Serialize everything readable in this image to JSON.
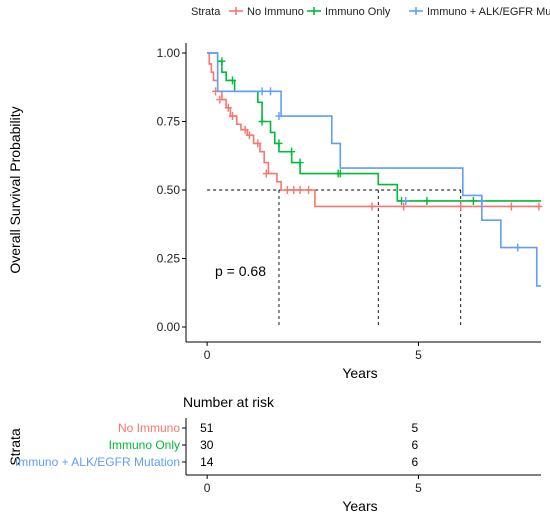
{
  "chart_data": [
    {
      "type": "line",
      "subtype": "kaplan-meier",
      "title": "",
      "xlabel": "Years",
      "ylabel": "Overall Survival Probability",
      "xlim": [
        -0.5,
        7.9
      ],
      "ylim": [
        0,
        1.0
      ],
      "x_ticks": [
        0,
        5
      ],
      "x_tick_labels": [
        "0",
        "5"
      ],
      "y_ticks": [
        0,
        0.25,
        0.5,
        0.75,
        1.0
      ],
      "y_tick_labels": [
        "0.00",
        "0.25",
        "0.50",
        "0.75",
        "1.00"
      ],
      "grid": false,
      "legend": {
        "placement": "top",
        "title": "Strata",
        "entries": [
          "No Immuno",
          "Immuno Only",
          "Immuno + ALK/EGFR Mutation"
        ]
      },
      "annotation": "p = 0.68",
      "median_line_y": 0.5,
      "median_x": [
        1.7,
        4.05,
        6.0
      ],
      "series": [
        {
          "name": "No Immuno",
          "color": "#f8766d",
          "steps": [
            [
              0,
              1.0
            ],
            [
              0.05,
              0.96
            ],
            [
              0.1,
              0.93
            ],
            [
              0.15,
              0.9
            ],
            [
              0.25,
              0.86
            ],
            [
              0.35,
              0.83
            ],
            [
              0.45,
              0.8
            ],
            [
              0.55,
              0.77
            ],
            [
              0.7,
              0.74
            ],
            [
              0.8,
              0.72
            ],
            [
              0.95,
              0.7
            ],
            [
              1.1,
              0.67
            ],
            [
              1.25,
              0.64
            ],
            [
              1.35,
              0.6
            ],
            [
              1.45,
              0.56
            ],
            [
              1.65,
              0.53
            ],
            [
              1.75,
              0.5
            ],
            [
              2.55,
              0.44
            ],
            [
              7.9,
              0.44
            ]
          ],
          "censored": [
            [
              0.2,
              0.86
            ],
            [
              0.3,
              0.83
            ],
            [
              0.5,
              0.8
            ],
            [
              0.6,
              0.77
            ],
            [
              0.9,
              0.72
            ],
            [
              1.0,
              0.7
            ],
            [
              1.2,
              0.67
            ],
            [
              1.4,
              0.56
            ],
            [
              1.9,
              0.5
            ],
            [
              2.05,
              0.5
            ],
            [
              2.2,
              0.5
            ],
            [
              2.4,
              0.5
            ],
            [
              3.9,
              0.44
            ],
            [
              4.65,
              0.44
            ],
            [
              6.0,
              0.44
            ],
            [
              7.2,
              0.44
            ],
            [
              7.85,
              0.44
            ]
          ]
        },
        {
          "name": "Immuno Only",
          "color": "#00ba38",
          "steps": [
            [
              0,
              1.0
            ],
            [
              0.25,
              0.97
            ],
            [
              0.35,
              0.93
            ],
            [
              0.45,
              0.9
            ],
            [
              0.65,
              0.86
            ],
            [
              1.2,
              0.82
            ],
            [
              1.3,
              0.75
            ],
            [
              1.5,
              0.71
            ],
            [
              1.6,
              0.67
            ],
            [
              1.7,
              0.64
            ],
            [
              2.0,
              0.6
            ],
            [
              2.2,
              0.56
            ],
            [
              2.6,
              0.56
            ],
            [
              4.05,
              0.52
            ],
            [
              4.5,
              0.46
            ],
            [
              7.9,
              0.46
            ]
          ],
          "censored": [
            [
              0.35,
              0.97
            ],
            [
              0.6,
              0.9
            ],
            [
              1.3,
              0.75
            ],
            [
              1.7,
              0.67
            ],
            [
              2.0,
              0.64
            ],
            [
              2.2,
              0.6
            ],
            [
              3.1,
              0.56
            ],
            [
              3.15,
              0.56
            ],
            [
              4.6,
              0.46
            ],
            [
              5.2,
              0.46
            ],
            [
              6.3,
              0.46
            ],
            [
              6.5,
              0.46
            ]
          ]
        },
        {
          "name": "Immuno + ALK/EGFR Mutation",
          "color": "#619cff",
          "steps": [
            [
              0,
              1.0
            ],
            [
              0.25,
              0.86
            ],
            [
              1.7,
              0.86
            ],
            [
              1.75,
              0.77
            ],
            [
              2.75,
              0.77
            ],
            [
              2.95,
              0.67
            ],
            [
              3.15,
              0.58
            ],
            [
              6.0,
              0.58
            ],
            [
              6.05,
              0.48
            ],
            [
              6.4,
              0.48
            ],
            [
              6.5,
              0.39
            ],
            [
              6.85,
              0.39
            ],
            [
              6.95,
              0.29
            ],
            [
              7.7,
              0.29
            ],
            [
              7.8,
              0.15
            ],
            [
              7.9,
              0.15
            ]
          ],
          "censored": [
            [
              1.3,
              0.86
            ],
            [
              1.5,
              0.86
            ],
            [
              1.7,
              0.77
            ],
            [
              4.7,
              0.46
            ],
            [
              6.5,
              0.46
            ],
            [
              7.35,
              0.29
            ]
          ]
        }
      ]
    },
    {
      "type": "table",
      "title": "Number at risk",
      "row_title": "Strata",
      "xlabel": "Years",
      "x_ticks": [
        0,
        5
      ],
      "x_tick_labels": [
        "0",
        "5"
      ],
      "rows": [
        {
          "name": "No Immuno",
          "color": "#f8766d",
          "values": [
            "51",
            "5"
          ]
        },
        {
          "name": "Immuno Only",
          "color": "#00ba38",
          "values": [
            "30",
            "6"
          ]
        },
        {
          "name": "Immuno + ALK/EGFR Mutation",
          "color": "#619cff",
          "values": [
            "14",
            "6"
          ]
        }
      ]
    }
  ]
}
